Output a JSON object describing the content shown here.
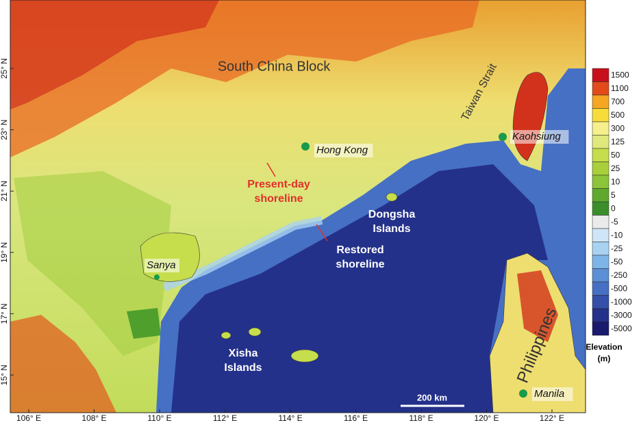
{
  "map": {
    "region_label": "South China Block",
    "strait_label": "Taiwan Strait",
    "country_label": "Philippines",
    "places": [
      {
        "name": "Hong Kong"
      },
      {
        "name": "Kaohsiung"
      },
      {
        "name": "Sanya"
      },
      {
        "name": "Manila"
      }
    ],
    "islands": [
      {
        "lines": [
          "Dongsha",
          "Islands"
        ]
      },
      {
        "lines": [
          "Xisha",
          "Islands"
        ]
      }
    ],
    "annotations": [
      {
        "lines": [
          "Present-day",
          "shoreline"
        ]
      },
      {
        "lines": [
          "Restored",
          "shoreline"
        ]
      }
    ],
    "scale_bar": "200 km",
    "lat_ticks": [
      {
        "value": 25,
        "label": "25° N"
      },
      {
        "value": 23,
        "label": "23° N"
      },
      {
        "value": 21,
        "label": "21° N"
      },
      {
        "value": 19,
        "label": "19° N"
      },
      {
        "value": 17,
        "label": "17° N"
      },
      {
        "value": 15,
        "label": "15° N"
      }
    ],
    "lon_ticks": [
      {
        "value": 106,
        "label": "106° E"
      },
      {
        "value": 108,
        "label": "108° E"
      },
      {
        "value": 110,
        "label": "110° E"
      },
      {
        "value": 112,
        "label": "112° E"
      },
      {
        "value": 114,
        "label": "114° E"
      },
      {
        "value": 116,
        "label": "116° E"
      },
      {
        "value": 118,
        "label": "118° E"
      },
      {
        "value": 120,
        "label": "120° E"
      },
      {
        "value": 122,
        "label": "122° E"
      }
    ],
    "legend": {
      "title": [
        "Elevation",
        "(m)"
      ],
      "entries": [
        {
          "value": 1500,
          "color": "#c8101c"
        },
        {
          "value": 1100,
          "color": "#e24a1c"
        },
        {
          "value": 700,
          "color": "#f5a623"
        },
        {
          "value": 500,
          "color": "#f8dc3a"
        },
        {
          "value": 300,
          "color": "#f5f08c"
        },
        {
          "value": 125,
          "color": "#dfe87c"
        },
        {
          "value": 50,
          "color": "#c6dd4c"
        },
        {
          "value": 25,
          "color": "#a9cf3a"
        },
        {
          "value": 10,
          "color": "#8cc43a"
        },
        {
          "value": 5,
          "color": "#5faa2e"
        },
        {
          "value": 0,
          "color": "#3a8f2a"
        },
        {
          "value": -5,
          "color": "#ebebeb"
        },
        {
          "value": -10,
          "color": "#cfe6f8"
        },
        {
          "value": -25,
          "color": "#a9d2f2"
        },
        {
          "value": -50,
          "color": "#7eb5e8"
        },
        {
          "value": -250,
          "color": "#5b8fd6"
        },
        {
          "value": -500,
          "color": "#4670c4"
        },
        {
          "value": -1000,
          "color": "#3450a8"
        },
        {
          "value": -3000,
          "color": "#24318a"
        },
        {
          "value": -5000,
          "color": "#1a1a6e"
        }
      ]
    }
  }
}
